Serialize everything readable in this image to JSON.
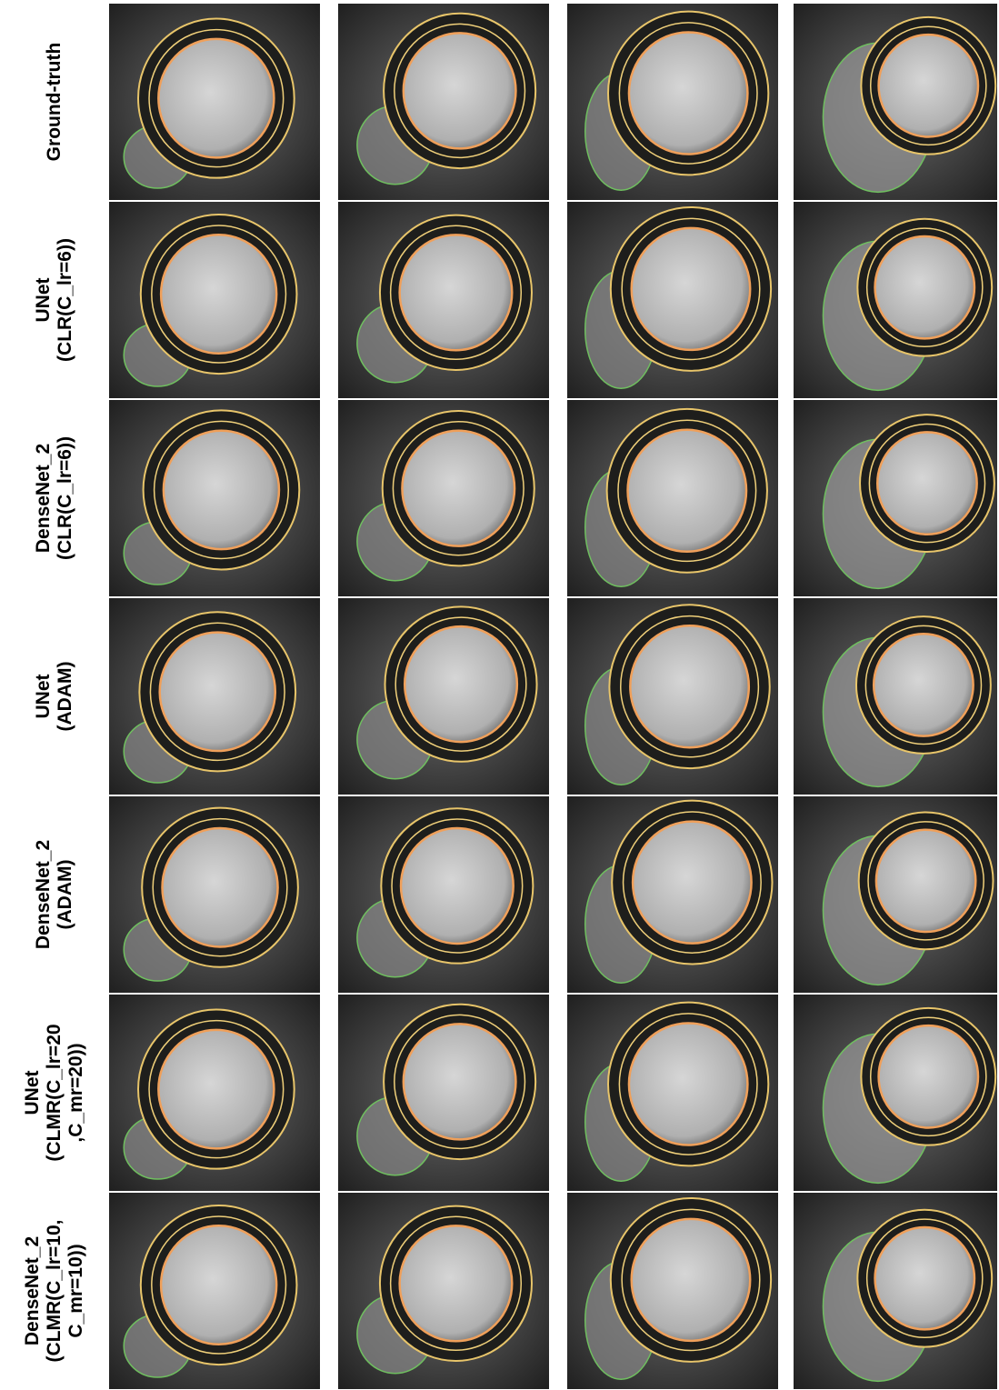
{
  "figure": {
    "rows": [
      {
        "label": [
          "Ground-truth"
        ]
      },
      {
        "label": [
          "UNet",
          "(CLR(C_lr=6))"
        ]
      },
      {
        "label": [
          "DenseNet_2",
          "(CLR(C_lr=6))"
        ]
      },
      {
        "label": [
          "UNet",
          "(ADAM)"
        ]
      },
      {
        "label": [
          "DenseNet_2",
          "(ADAM)"
        ]
      },
      {
        "label": [
          "UNet",
          "(CLMR(C_lr=20",
          ",C_mr=20))"
        ]
      },
      {
        "label": [
          "DenseNet_2",
          "(CLMR(C_lr=10,",
          "C_mr=10))"
        ]
      }
    ]
  }
}
